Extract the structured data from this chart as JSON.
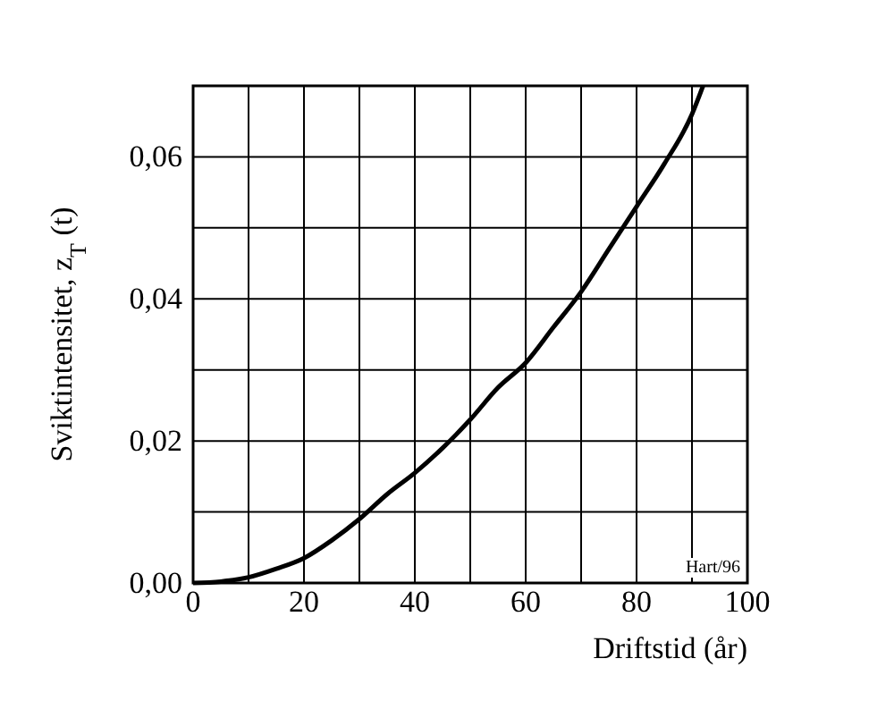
{
  "chart_data": {
    "type": "line",
    "xlabel": "Driftstid (år)",
    "ylabel": "Sviktintensitet, z$_{T}$ (t)",
    "x": [
      0,
      5,
      10,
      15,
      20,
      25,
      30,
      35,
      40,
      45,
      50,
      55,
      60,
      65,
      70,
      75,
      80,
      85,
      90,
      92
    ],
    "series": [
      {
        "color": "#000000",
        "values": [
          0,
          0.0002,
          0.0008,
          0.002,
          0.0035,
          0.006,
          0.009,
          0.0125,
          0.0155,
          0.019,
          0.023,
          0.0275,
          0.031,
          0.036,
          0.041,
          0.047,
          0.053,
          0.059,
          0.066,
          0.07
        ]
      }
    ],
    "xlim": [
      0,
      100
    ],
    "ylim": [
      0,
      0.07
    ],
    "xticks": [
      0,
      {
        "value": 10,
        "label": null
      },
      20,
      {
        "value": 30,
        "label": null
      },
      40,
      {
        "value": 50,
        "label": null
      },
      60,
      {
        "value": 70,
        "label": null
      },
      80,
      {
        "value": 90,
        "label": null
      },
      100
    ],
    "yticks": [
      {
        "value": 0,
        "label": "0,00"
      },
      {
        "value": 0.01,
        "label": null
      },
      {
        "value": 0.02,
        "label": "0,02"
      },
      {
        "value": 0.03,
        "label": null
      },
      {
        "value": 0.04,
        "label": "0,04"
      },
      {
        "value": 0.05,
        "label": null
      },
      {
        "value": 0.06,
        "label": "0,06"
      },
      {
        "value": 0.07,
        "label": null
      }
    ],
    "grid": true,
    "marker": "none",
    "line_style": "solid",
    "annotations": [
      "Hart/96"
    ]
  }
}
